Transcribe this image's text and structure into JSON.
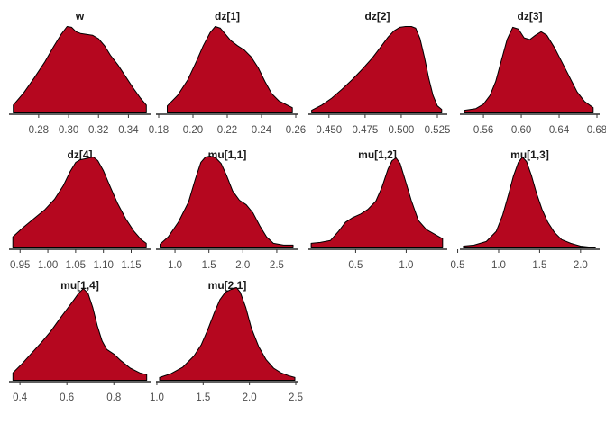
{
  "chart_data": [
    {
      "type": "area",
      "title": "w",
      "xlim": [
        0.262,
        0.353
      ],
      "ticks": [
        0.28,
        0.3,
        0.32,
        0.34
      ],
      "tick_labels": [
        "0.28",
        "0.30",
        "0.32",
        "0.34"
      ],
      "x": [
        0.263,
        0.27,
        0.277,
        0.284,
        0.29,
        0.295,
        0.299,
        0.302,
        0.305,
        0.308,
        0.312,
        0.316,
        0.32,
        0.324,
        0.328,
        0.333,
        0.338,
        0.343,
        0.348,
        0.352
      ],
      "y": [
        0.09,
        0.23,
        0.4,
        0.58,
        0.76,
        0.9,
        0.99,
        0.98,
        0.93,
        0.91,
        0.9,
        0.89,
        0.85,
        0.77,
        0.66,
        0.55,
        0.42,
        0.29,
        0.17,
        0.09
      ]
    },
    {
      "type": "area",
      "title": "dz[1]",
      "xlim": [
        0.18,
        0.26
      ],
      "ticks": [
        0.18,
        0.2,
        0.22,
        0.24,
        0.26
      ],
      "tick_labels": [
        "0.18",
        "0.20",
        "0.22",
        "0.24",
        "0.26"
      ],
      "x": [
        0.185,
        0.191,
        0.197,
        0.202,
        0.206,
        0.21,
        0.213,
        0.216,
        0.219,
        0.222,
        0.226,
        0.23,
        0.234,
        0.238,
        0.242,
        0.246,
        0.25,
        0.255,
        0.258
      ],
      "y": [
        0.08,
        0.2,
        0.38,
        0.59,
        0.77,
        0.92,
        0.99,
        0.97,
        0.9,
        0.83,
        0.77,
        0.72,
        0.64,
        0.52,
        0.36,
        0.22,
        0.14,
        0.09,
        0.06
      ]
    },
    {
      "type": "area",
      "title": "dz[2]",
      "xlim": [
        0.437,
        0.53
      ],
      "ticks": [
        0.45,
        0.475,
        0.5,
        0.525
      ],
      "tick_labels": [
        "0.450",
        "0.475",
        "0.500",
        "0.525"
      ],
      "x": [
        0.438,
        0.445,
        0.452,
        0.459,
        0.466,
        0.473,
        0.48,
        0.486,
        0.491,
        0.495,
        0.499,
        0.503,
        0.507,
        0.51,
        0.513,
        0.516,
        0.519,
        0.522,
        0.525,
        0.528
      ],
      "y": [
        0.03,
        0.09,
        0.17,
        0.27,
        0.38,
        0.5,
        0.63,
        0.76,
        0.87,
        0.94,
        0.98,
        0.99,
        0.99,
        0.97,
        0.85,
        0.64,
        0.4,
        0.2,
        0.08,
        0.04
      ]
    },
    {
      "type": "area",
      "title": "dz[3]",
      "xlim": [
        0.538,
        0.68
      ],
      "ticks": [
        0.56,
        0.6,
        0.64,
        0.68
      ],
      "tick_labels": [
        "0.56",
        "0.60",
        "0.64",
        "0.68"
      ],
      "x": [
        0.54,
        0.552,
        0.56,
        0.567,
        0.573,
        0.579,
        0.585,
        0.591,
        0.597,
        0.603,
        0.609,
        0.615,
        0.621,
        0.627,
        0.635,
        0.643,
        0.651,
        0.659,
        0.667,
        0.676
      ],
      "y": [
        0.03,
        0.05,
        0.1,
        0.2,
        0.36,
        0.6,
        0.84,
        0.98,
        0.96,
        0.86,
        0.84,
        0.89,
        0.93,
        0.89,
        0.75,
        0.58,
        0.41,
        0.24,
        0.13,
        0.06
      ]
    },
    {
      "type": "area",
      "title": "dz[4]",
      "xlim": [
        0.935,
        1.18
      ],
      "ticks": [
        0.95,
        1.0,
        1.05,
        1.1,
        1.15
      ],
      "tick_labels": [
        "0.95",
        "1.00",
        "1.05",
        "1.10",
        "1.15"
      ],
      "x": [
        0.937,
        0.955,
        0.975,
        0.995,
        1.012,
        1.028,
        1.04,
        1.05,
        1.058,
        1.066,
        1.074,
        1.082,
        1.09,
        1.1,
        1.112,
        1.125,
        1.14,
        1.155,
        1.168,
        1.177
      ],
      "y": [
        0.12,
        0.22,
        0.32,
        0.42,
        0.53,
        0.68,
        0.83,
        0.93,
        0.96,
        0.97,
        0.98,
        0.99,
        0.95,
        0.84,
        0.67,
        0.49,
        0.32,
        0.18,
        0.09,
        0.05
      ]
    },
    {
      "type": "area",
      "title": "mu[1,1]",
      "xlim": [
        0.76,
        2.78
      ],
      "ticks": [
        1.0,
        1.5,
        2.0,
        2.5
      ],
      "tick_labels": [
        "1.0",
        "1.5",
        "2.0",
        "2.5"
      ],
      "x": [
        0.78,
        0.9,
        1.05,
        1.2,
        1.3,
        1.38,
        1.45,
        1.52,
        1.6,
        1.68,
        1.76,
        1.85,
        1.95,
        2.05,
        2.15,
        2.25,
        2.35,
        2.45,
        2.6,
        2.74
      ],
      "y": [
        0.04,
        0.12,
        0.28,
        0.5,
        0.75,
        0.93,
        0.99,
        1.0,
        0.98,
        0.92,
        0.79,
        0.62,
        0.52,
        0.47,
        0.38,
        0.24,
        0.12,
        0.05,
        0.03,
        0.03
      ]
    },
    {
      "type": "area",
      "title": "mu[1,2]",
      "xlim": [
        0.05,
        1.38
      ],
      "ticks": [
        0.5,
        1.0
      ],
      "tick_labels": [
        "0.5",
        "1.0"
      ],
      "x": [
        0.06,
        0.15,
        0.25,
        0.33,
        0.4,
        0.47,
        0.55,
        0.62,
        0.7,
        0.76,
        0.82,
        0.86,
        0.9,
        0.94,
        0.99,
        1.05,
        1.12,
        1.2,
        1.28,
        1.36
      ],
      "y": [
        0.05,
        0.06,
        0.08,
        0.18,
        0.28,
        0.33,
        0.37,
        0.42,
        0.51,
        0.66,
        0.86,
        0.95,
        0.98,
        0.92,
        0.74,
        0.52,
        0.3,
        0.2,
        0.15,
        0.1
      ]
    },
    {
      "type": "area",
      "title": "mu[1,3]",
      "xlim": [
        0.56,
        2.2
      ],
      "ticks": [
        0.5,
        1.0,
        1.5,
        2.0
      ],
      "tick_labels": [
        "0.5",
        "1.0",
        "1.5",
        "2.0"
      ],
      "x": [
        0.57,
        0.7,
        0.85,
        0.97,
        1.05,
        1.12,
        1.18,
        1.24,
        1.29,
        1.34,
        1.4,
        1.46,
        1.53,
        1.6,
        1.68,
        1.77,
        1.88,
        2.0,
        2.1,
        2.18
      ],
      "y": [
        0.02,
        0.03,
        0.07,
        0.18,
        0.36,
        0.58,
        0.78,
        0.93,
        0.99,
        0.94,
        0.79,
        0.6,
        0.42,
        0.28,
        0.17,
        0.09,
        0.05,
        0.02,
        0.01,
        0.01
      ]
    },
    {
      "type": "area",
      "title": "mu[1,4]",
      "xlim": [
        0.365,
        0.945
      ],
      "ticks": [
        0.4,
        0.6,
        0.8
      ],
      "tick_labels": [
        "0.4",
        "0.6",
        "0.8"
      ],
      "x": [
        0.37,
        0.41,
        0.45,
        0.49,
        0.53,
        0.57,
        0.6,
        0.63,
        0.65,
        0.67,
        0.69,
        0.71,
        0.73,
        0.75,
        0.77,
        0.8,
        0.83,
        0.87,
        0.91,
        0.94
      ],
      "y": [
        0.08,
        0.18,
        0.29,
        0.4,
        0.52,
        0.66,
        0.76,
        0.86,
        0.93,
        0.98,
        0.93,
        0.78,
        0.58,
        0.42,
        0.33,
        0.28,
        0.21,
        0.13,
        0.08,
        0.06
      ]
    },
    {
      "type": "area",
      "title": "mu[2,1]",
      "xlim": [
        1.02,
        2.5
      ],
      "ticks": [
        1.0,
        1.5,
        2.0,
        2.5
      ],
      "tick_labels": [
        "1.0",
        "1.5",
        "2.0",
        "2.5"
      ],
      "x": [
        1.03,
        1.15,
        1.28,
        1.4,
        1.48,
        1.55,
        1.62,
        1.68,
        1.74,
        1.8,
        1.86,
        1.9,
        1.96,
        2.02,
        2.1,
        2.18,
        2.26,
        2.34,
        2.42,
        2.49
      ],
      "y": [
        0.03,
        0.07,
        0.14,
        0.26,
        0.38,
        0.54,
        0.72,
        0.86,
        0.94,
        0.97,
        0.99,
        0.94,
        0.78,
        0.56,
        0.36,
        0.22,
        0.13,
        0.08,
        0.05,
        0.03
      ]
    }
  ]
}
